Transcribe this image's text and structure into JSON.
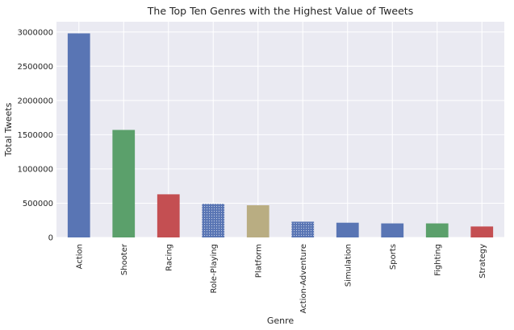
{
  "chart_data": {
    "type": "bar",
    "title": "The Top Ten Genres with the Highest Value of Tweets",
    "xlabel": "Genre",
    "ylabel": "Total Tweets",
    "categories": [
      "Action",
      "Shooter",
      "Racing",
      "Role-Playing",
      "Platform",
      "Action-Adventure",
      "Simulation",
      "Sports",
      "Fighting",
      "Strategy"
    ],
    "values": [
      2980000,
      1570000,
      630000,
      490000,
      470000,
      230000,
      215000,
      205000,
      205000,
      160000
    ],
    "bar_colors": [
      "#5975b4",
      "#5ba06b",
      "#c44f52",
      "#5975b4",
      "#b9ad82",
      "#5975b4",
      "#5975b4",
      "#5975b4",
      "#5ba06b",
      "#c44f52"
    ],
    "bar_patterned": [
      false,
      false,
      false,
      true,
      false,
      true,
      false,
      false,
      false,
      false
    ],
    "ylim": [
      0,
      3150000
    ],
    "yticks": [
      0,
      500000,
      1000000,
      1500000,
      2000000,
      2500000,
      3000000
    ],
    "ytick_labels": [
      "0",
      "500000",
      "1000000",
      "1500000",
      "2000000",
      "2500000",
      "3000000"
    ],
    "grid": true,
    "background": "#eaeaf2"
  }
}
